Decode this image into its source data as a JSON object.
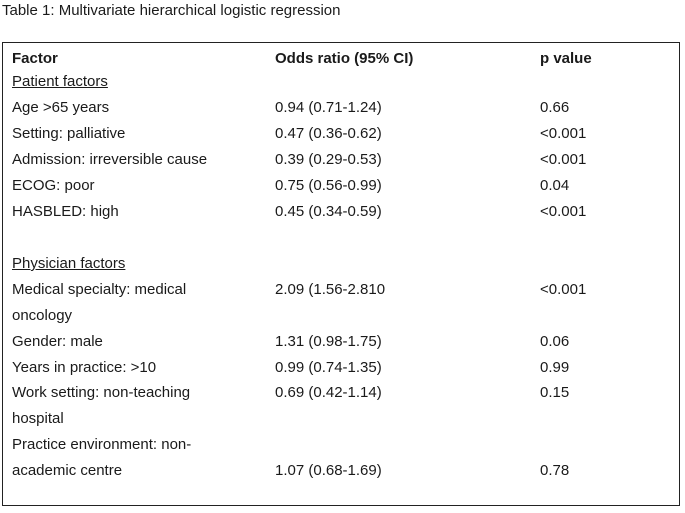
{
  "caption": "Table 1: Multivariate hierarchical logistic regression",
  "table": {
    "headers": {
      "factor": "Factor",
      "odds_ratio": "Odds ratio (95% CI)",
      "p_value": "p value"
    },
    "sections": {
      "patient": "Patient factors",
      "physician": "Physician factors"
    },
    "rows": [
      {
        "factor": "Age >65 years",
        "or": "0.94 (0.71-1.24)",
        "p": "0.66"
      },
      {
        "factor": "Setting: palliative",
        "or": "0.47 (0.36-0.62)",
        "p": "<0.001"
      },
      {
        "factor": "Admission: irreversible cause",
        "or": "0.39 (0.29-0.53)",
        "p": "<0.001"
      },
      {
        "factor": "ECOG: poor",
        "or": "0.75 (0.56-0.99)",
        "p": "0.04"
      },
      {
        "factor": "HASBLED: high",
        "or": "0.45 (0.34-0.59)",
        "p": "<0.001"
      },
      {
        "factor_line1": "Medical specialty: medical",
        "factor_line2": "oncology",
        "or": "2.09 (1.56-2.810",
        "p": "<0.001"
      },
      {
        "factor": "Gender: male",
        "or": "1.31 (0.98-1.75)",
        "p": "0.06"
      },
      {
        "factor": "Years in practice: >10",
        "or": "0.99 (0.74-1.35)",
        "p": "0.99"
      },
      {
        "factor_line1": "Work setting: non-teaching",
        "factor_line2": "hospital",
        "or": "0.69 (0.42-1.14)",
        "p": "0.15"
      },
      {
        "factor_line1": "Practice environment: non-",
        "factor_line2": "academic centre",
        "or": "1.07 (0.68-1.69)",
        "p": "0.78"
      }
    ]
  }
}
